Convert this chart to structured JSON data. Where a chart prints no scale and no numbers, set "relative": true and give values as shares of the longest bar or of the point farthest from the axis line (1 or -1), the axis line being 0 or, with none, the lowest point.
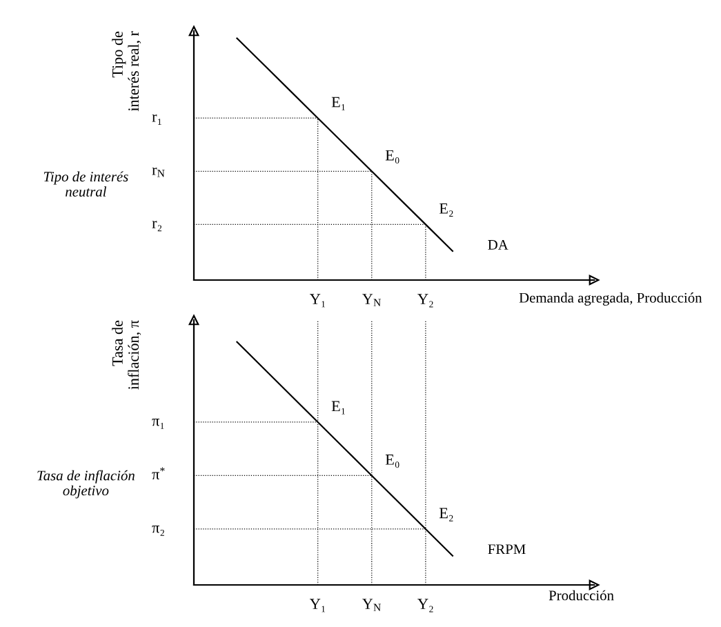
{
  "chart_data": [
    {
      "type": "line",
      "relative": true,
      "ylabel": "Tipo de\ninterés real, r",
      "xlabel": "Demanda agregada, Producción",
      "categories": [
        null,
        null,
        null,
        null,
        "Y₁",
        null,
        "Y$_{N}$",
        null,
        "Y₂",
        null,
        null,
        null,
        null,
        null,
        null
      ],
      "series": [
        {
          "name": "DA",
          "color": "#000000",
          "values": [
            null,
            1.0,
            0.89,
            0.78,
            0.67,
            0.56,
            0.45,
            0.34,
            0.23,
            0.12,
            null,
            null,
            null,
            null,
            null
          ]
        }
      ],
      "ref_lines": [
        {
          "axis": "y",
          "value": 0.67,
          "label": "r₁",
          "color": "#000000",
          "line_style": "dotted"
        },
        {
          "axis": "y",
          "value": 0.45,
          "label": "r$_{N}$",
          "color": "#000000",
          "line_style": "dotted"
        },
        {
          "axis": "y",
          "value": 0.23,
          "label": "r₂",
          "color": "#000000",
          "line_style": "dotted"
        },
        {
          "axis": "x",
          "value": "Y₁",
          "color": "#000000",
          "line_style": "dotted"
        },
        {
          "axis": "x",
          "value": "Y$_{N}$",
          "color": "#000000",
          "line_style": "dotted"
        },
        {
          "axis": "x",
          "value": "Y₂",
          "color": "#000000",
          "line_style": "dotted"
        }
      ],
      "annotations": [
        {
          "text": "E₁",
          "x": "Y₁",
          "y": 0.67
        },
        {
          "text": "E₀",
          "x": "Y$_{N}$",
          "y": 0.45
        },
        {
          "text": "E₂",
          "x": "Y₂",
          "y": 0.23
        },
        "Tipo de interés\nneutral"
      ],
      "marker": "none",
      "line_style": "solid"
    },
    {
      "type": "line",
      "relative": true,
      "ylabel": "Tasa de\ninflación, π",
      "xlabel": "Producción",
      "categories": [
        null,
        null,
        null,
        null,
        "Y₁",
        null,
        "Y$_{N}$",
        null,
        "Y₂",
        null,
        null,
        null,
        null,
        null,
        null
      ],
      "series": [
        {
          "name": "FRPM",
          "color": "#000000",
          "values": [
            null,
            1.0,
            0.89,
            0.78,
            0.67,
            0.56,
            0.45,
            0.34,
            0.23,
            0.12,
            null,
            null,
            null,
            null,
            null
          ]
        }
      ],
      "ref_lines": [
        {
          "axis": "y",
          "value": 0.67,
          "label": "π₁",
          "color": "#000000",
          "line_style": "dotted"
        },
        {
          "axis": "y",
          "value": 0.45,
          "label": "π$^{*}$",
          "color": "#000000",
          "line_style": "dotted"
        },
        {
          "axis": "y",
          "value": 0.23,
          "label": "π₂",
          "color": "#000000",
          "line_style": "dotted"
        }
      ],
      "annotations": [
        {
          "text": "E₁",
          "x": "Y₁",
          "y": 0.67
        },
        {
          "text": "E₀",
          "x": "Y$_{N}$",
          "y": 0.45
        },
        {
          "text": "E₂",
          "x": "Y₂",
          "y": 0.23
        },
        "Tasa de inflación\nobjetivo"
      ],
      "grid": "x",
      "marker": "none",
      "line_style": "solid"
    }
  ]
}
